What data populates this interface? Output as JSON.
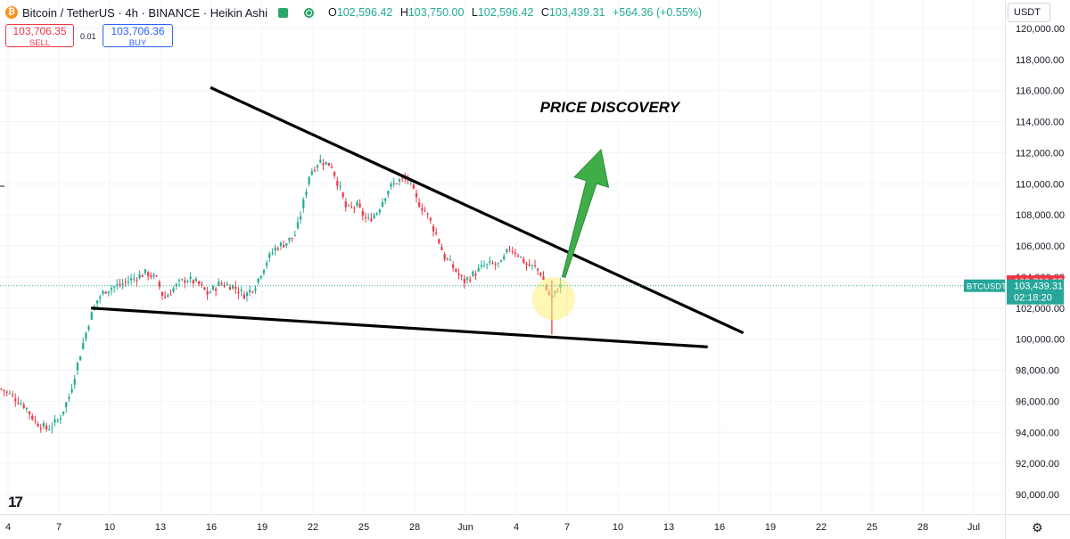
{
  "header": {
    "symbol_title": "Bitcoin / TetherUS · 4h · BINANCE · Heikin Ashi",
    "open_label": "O",
    "open_value": "102,596.42",
    "high_label": "H",
    "high_value": "103,750.00",
    "low_label": "L",
    "low_value": "102,596.42",
    "close_label": "C",
    "close_value": "103,439.31",
    "change": "+564.36 (+0.55%)"
  },
  "trade": {
    "sell_price": "103,706.35",
    "sell_label": "SELL",
    "spread": "0.01",
    "buy_price": "103,706.36",
    "buy_label": "BUY"
  },
  "toolbar": {
    "currency": "USDT"
  },
  "colors": {
    "up": "#22ab94",
    "down": "#f23645",
    "annotation_arrow": "#3fae49",
    "highlight": "#fff176",
    "trendline": "#000000",
    "price_tag": "#26a69a"
  },
  "icons": {
    "logo": "bitcoin-logo-icon",
    "flag": "flag-icon",
    "status": "market-open-icon",
    "settings": "gear-icon",
    "brand": "tradingview-logo-icon"
  },
  "brand_logo_text": "17",
  "settings_glyph": "⚙",
  "chart_data": {
    "type": "candlestick",
    "subtype": "Heikin Ashi",
    "interval": "4h",
    "ylim": [
      88900,
      121100
    ],
    "y_ticks": [
      {
        "value": 120000,
        "label": "120,000.00"
      },
      {
        "value": 118000,
        "label": "118,000.00"
      },
      {
        "value": 116000,
        "label": "116,000.00"
      },
      {
        "value": 114000,
        "label": "114,000.00"
      },
      {
        "value": 112000,
        "label": "112,000.00"
      },
      {
        "value": 110000,
        "label": "110,000.00"
      },
      {
        "value": 108000,
        "label": "108,000.00"
      },
      {
        "value": 106000,
        "label": "106,000.00"
      },
      {
        "value": 104000,
        "label": "104,000.00"
      },
      {
        "value": 102000,
        "label": "102,000.00"
      },
      {
        "value": 100000,
        "label": "100,000.00"
      },
      {
        "value": 98000,
        "label": "98,000.00"
      },
      {
        "value": 96000,
        "label": "96,000.00"
      },
      {
        "value": 94000,
        "label": "94,000.00"
      },
      {
        "value": 92000,
        "label": "92,000.00"
      },
      {
        "value": 90000,
        "label": "90,000.00"
      }
    ],
    "x_ticks": [
      {
        "day": 4,
        "label": "4"
      },
      {
        "day": 7,
        "label": "7"
      },
      {
        "day": 10,
        "label": "10"
      },
      {
        "day": 13,
        "label": "13"
      },
      {
        "day": 16,
        "label": "16"
      },
      {
        "day": 19,
        "label": "19"
      },
      {
        "day": 22,
        "label": "22"
      },
      {
        "day": 25,
        "label": "25"
      },
      {
        "day": 28,
        "label": "28"
      },
      {
        "day": 31,
        "label": "Jun"
      },
      {
        "day": 34,
        "label": "4"
      },
      {
        "day": 37,
        "label": "7"
      },
      {
        "day": 40,
        "label": "10"
      },
      {
        "day": 43,
        "label": "13"
      },
      {
        "day": 46,
        "label": "16"
      },
      {
        "day": 49,
        "label": "19"
      },
      {
        "day": 52,
        "label": "22"
      },
      {
        "day": 55,
        "label": "25"
      },
      {
        "day": 58,
        "label": "28"
      },
      {
        "day": 61,
        "label": "Jul"
      }
    ],
    "price_anchors": [
      [
        3.6,
        96800
      ],
      [
        4.3,
        96300
      ],
      [
        5.0,
        95700
      ],
      [
        5.6,
        94700
      ],
      [
        6.3,
        94200
      ],
      [
        7.0,
        94800
      ],
      [
        7.6,
        96300
      ],
      [
        8.2,
        98800
      ],
      [
        8.8,
        101200
      ],
      [
        9.3,
        102600
      ],
      [
        9.8,
        103200
      ],
      [
        10.6,
        103500
      ],
      [
        11.4,
        103900
      ],
      [
        12.2,
        104300
      ],
      [
        12.8,
        103800
      ],
      [
        13.2,
        102600
      ],
      [
        13.8,
        103300
      ],
      [
        14.5,
        103900
      ],
      [
        15.2,
        103600
      ],
      [
        15.8,
        102900
      ],
      [
        16.5,
        103600
      ],
      [
        17.3,
        103400
      ],
      [
        18.0,
        102800
      ],
      [
        18.6,
        103500
      ],
      [
        19.2,
        104900
      ],
      [
        19.8,
        105900
      ],
      [
        20.4,
        106200
      ],
      [
        21.0,
        106800
      ],
      [
        21.4,
        108600
      ],
      [
        21.8,
        110700
      ],
      [
        22.4,
        111500
      ],
      [
        23.1,
        111200
      ],
      [
        23.6,
        109600
      ],
      [
        24.0,
        108300
      ],
      [
        24.6,
        108600
      ],
      [
        25.2,
        107600
      ],
      [
        25.8,
        108200
      ],
      [
        26.4,
        109600
      ],
      [
        27.0,
        110200
      ],
      [
        27.6,
        110300
      ],
      [
        28.1,
        109000
      ],
      [
        28.7,
        108100
      ],
      [
        29.3,
        106700
      ],
      [
        29.8,
        105200
      ],
      [
        30.3,
        104600
      ],
      [
        30.9,
        103700
      ],
      [
        31.5,
        104200
      ],
      [
        32.1,
        104700
      ],
      [
        32.6,
        104800
      ],
      [
        33.1,
        104800
      ],
      [
        33.6,
        105900
      ],
      [
        34.1,
        105500
      ],
      [
        34.6,
        104800
      ],
      [
        35.1,
        104600
      ],
      [
        35.5,
        104200
      ],
      [
        35.8,
        103100
      ],
      [
        36.1,
        102600
      ],
      [
        36.4,
        103200
      ],
      [
        36.75,
        103600
      ]
    ],
    "sample_step_days": 0.1667,
    "current_price": {
      "value": 103439.31,
      "label": "103,439.31",
      "countdown": "02:18:20",
      "symbol": "BTCUSDT"
    },
    "ask_price": {
      "value": 103706.35,
      "label": "103,706.35"
    },
    "annotations": {
      "text": "PRICE DISCOVERY",
      "upper_trendline": [
        [
          15.95,
          116200
        ],
        [
          47.4,
          100400
        ]
      ],
      "lower_trendline": [
        [
          8.9,
          102000
        ],
        [
          45.3,
          99500
        ]
      ],
      "arrow": {
        "from": [
          36.8,
          104000
        ],
        "to": [
          39.0,
          112200
        ]
      },
      "text_pos": [
        35.4,
        114600
      ],
      "highlight": {
        "center": [
          36.2,
          102600
        ],
        "radius_days": 0.45
      }
    }
  }
}
